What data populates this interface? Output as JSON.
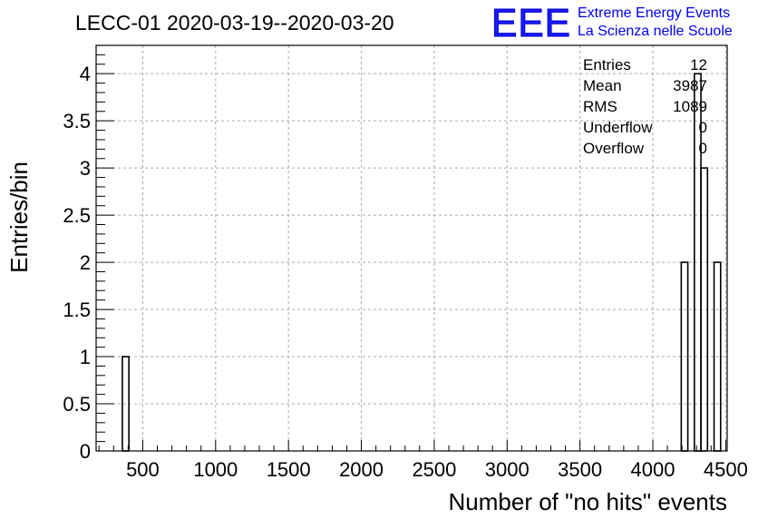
{
  "chart_data": {
    "type": "histogram",
    "title": "LECC-01 2020-03-19--2020-03-20",
    "xlabel": "Number of \"no hits\" events",
    "ylabel": "Entries/bin",
    "xlim": [
      180,
      4510
    ],
    "ylim": [
      0,
      4.3
    ],
    "grid": true,
    "bin_width": 45,
    "bins": [
      {
        "x_low": 360,
        "x_high": 405,
        "count": 1
      },
      {
        "x_low": 4195,
        "x_high": 4240,
        "count": 2
      },
      {
        "x_low": 4285,
        "x_high": 4330,
        "count": 4
      },
      {
        "x_low": 4330,
        "x_high": 4375,
        "count": 3
      },
      {
        "x_low": 4420,
        "x_high": 4465,
        "count": 2
      }
    ],
    "x_ticks": [
      {
        "value": 500,
        "label": "500"
      },
      {
        "value": 1000,
        "label": "1000"
      },
      {
        "value": 1500,
        "label": "1500"
      },
      {
        "value": 2000,
        "label": "2000"
      },
      {
        "value": 2500,
        "label": "2500"
      },
      {
        "value": 3000,
        "label": "3000"
      },
      {
        "value": 3500,
        "label": "3500"
      },
      {
        "value": 4000,
        "label": "4000"
      },
      {
        "value": 4500,
        "label": "4500"
      }
    ],
    "y_ticks": [
      {
        "value": 0,
        "label": "0"
      },
      {
        "value": 0.5,
        "label": "0.5"
      },
      {
        "value": 1,
        "label": "1"
      },
      {
        "value": 1.5,
        "label": "1.5"
      },
      {
        "value": 2,
        "label": "2"
      },
      {
        "value": 2.5,
        "label": "2.5"
      },
      {
        "value": 3,
        "label": "3"
      },
      {
        "value": 3.5,
        "label": "3.5"
      },
      {
        "value": 4,
        "label": "4"
      }
    ],
    "stats": [
      {
        "label": "Entries",
        "value": "12"
      },
      {
        "label": "Mean",
        "value": "3987"
      },
      {
        "label": "RMS",
        "value": "1089"
      },
      {
        "label": "Underflow",
        "value": "0"
      },
      {
        "label": "Overflow",
        "value": "0"
      }
    ]
  },
  "logo": {
    "mark": "EEE",
    "line1": "Extreme Energy Events",
    "line2": "La Scienza nelle Scuole",
    "color": "#0000ee"
  }
}
